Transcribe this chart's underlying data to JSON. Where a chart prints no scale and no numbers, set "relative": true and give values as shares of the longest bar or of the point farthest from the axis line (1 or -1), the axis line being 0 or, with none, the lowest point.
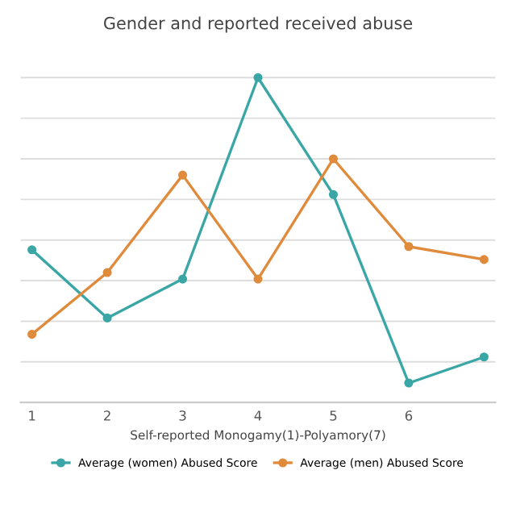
{
  "chart_data": {
    "type": "line",
    "title": "Gender and reported received abuse",
    "xlabel": "Self-reported Monogamy(1)-Polyamory(7)",
    "categories": [
      "1",
      "2",
      "3",
      "4",
      "5",
      "6",
      null
    ],
    "relative": true,
    "grid": "y",
    "legend": "bottom",
    "marker": "circle",
    "line_style": "solid",
    "series": [
      {
        "name": "Average (women) Abused Score",
        "color": "#3aa6a6",
        "values": [
          0.47,
          0.26,
          0.38,
          1,
          0.64,
          0.06,
          0.14
        ]
      },
      {
        "name": "Average (men) Abused Score",
        "color": "#e08a3c",
        "values": [
          0.21,
          0.4,
          0.7,
          0.38,
          0.75,
          0.48,
          0.44
        ]
      }
    ]
  }
}
